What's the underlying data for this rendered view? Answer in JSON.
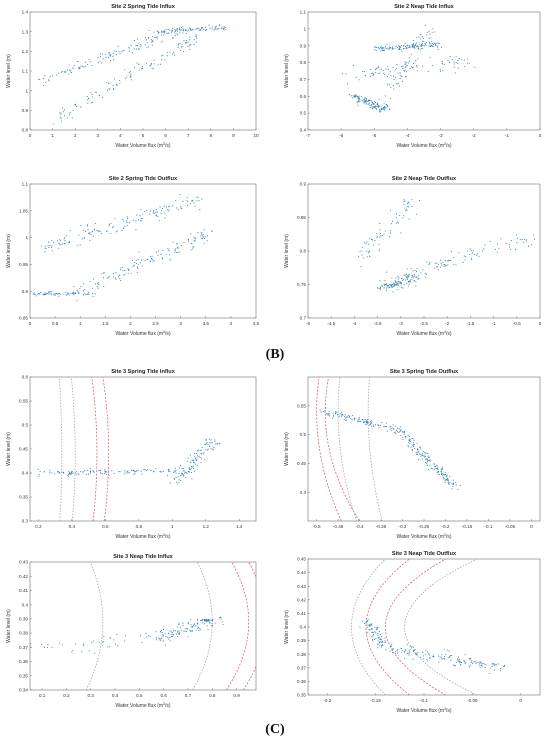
{
  "captions": {
    "b": "(B)",
    "c": "(C)"
  },
  "colors": {
    "points": "#2f7fb1",
    "bounds_red": "#d9534f",
    "bounds_grey": "#9a9a9a"
  },
  "chart_data": [
    {
      "id": "s2-spring-in",
      "type": "scatter",
      "title": "Site 2 Spring Tide Influx",
      "xlabel": "Water Volume flux (m<sup>3</sup>/s)",
      "ylabel": "Water level (m)",
      "xlim": [
        0,
        10
      ],
      "ylim": [
        0.8,
        1.4
      ],
      "xticks": [
        0,
        1,
        2,
        3,
        4,
        5,
        6,
        7,
        8,
        9,
        10
      ],
      "yticks": [
        0.8,
        0.9,
        1.0,
        1.1,
        1.2,
        1.3,
        1.4
      ],
      "xtick_labels": [
        "0",
        "1",
        "2",
        "3",
        "4",
        "5",
        "6",
        "7",
        "8",
        "9",
        "10"
      ],
      "ytick_labels": [
        "0.8",
        "0.9",
        "1",
        "1.1",
        "1.2",
        "1.3",
        "1.4"
      ],
      "clusters": [
        {
          "x0": 0.3,
          "y0": 1.05,
          "x1": 6.8,
          "y1": 1.31,
          "n": 130,
          "sx": 0.35,
          "sy": 0.03
        },
        {
          "x0": 1.2,
          "y0": 0.86,
          "x1": 7.6,
          "y1": 1.28,
          "n": 120,
          "sx": 0.3,
          "sy": 0.025
        },
        {
          "x0": 5.5,
          "y0": 1.3,
          "x1": 8.6,
          "y1": 1.32,
          "n": 90,
          "sx": 0.3,
          "sy": 0.012
        }
      ]
    },
    {
      "id": "s2-neap-in",
      "type": "scatter",
      "title": "Site 2 Neap Tide Influx",
      "xlabel": "Water Volume flux (m<sup>3</sup>/s)",
      "ylabel": "Water level (m)",
      "xlim": [
        -7,
        0
      ],
      "ylim": [
        0.4,
        1.1
      ],
      "xticks": [
        -7,
        -6,
        -5,
        -4,
        -3,
        -2,
        -1,
        0
      ],
      "yticks": [
        0.4,
        0.5,
        0.6,
        0.7,
        0.8,
        0.9,
        1.0,
        1.1
      ],
      "xtick_labels": [
        "-7",
        "-6",
        "-5",
        "-4",
        "-3",
        "-2",
        "-1",
        "0"
      ],
      "ytick_labels": [
        "0.4",
        "0.5",
        "0.6",
        "0.7",
        "0.8",
        "0.9",
        "1",
        "1.1"
      ],
      "clusters": [
        {
          "x0": -5.6,
          "y0": 0.6,
          "x1": -4.7,
          "y1": 0.52,
          "n": 130,
          "sx": 0.18,
          "sy": 0.02
        },
        {
          "x0": -5.0,
          "y0": 0.88,
          "x1": -3.1,
          "y1": 0.91,
          "n": 130,
          "sx": 0.2,
          "sy": 0.02
        },
        {
          "x0": -5.8,
          "y0": 0.72,
          "x1": -2.2,
          "y1": 0.8,
          "n": 90,
          "sx": 0.3,
          "sy": 0.05
        },
        {
          "x0": -4.8,
          "y0": 0.55,
          "x1": -3.3,
          "y1": 1.0,
          "n": 60,
          "sx": 0.25,
          "sy": 0.04
        }
      ]
    },
    {
      "id": "s2-spring-out",
      "type": "scatter",
      "title": "Site 2 Spring Tide Outflux",
      "xlabel": "Water Volume flux (m<sup>3</sup>/s)",
      "ylabel": "Water level (m)",
      "xlim": [
        0,
        4.5
      ],
      "ylim": [
        0.85,
        1.1
      ],
      "xticks": [
        0,
        0.5,
        1,
        1.5,
        2,
        2.5,
        3,
        3.5,
        4,
        4.5
      ],
      "yticks": [
        0.85,
        0.9,
        0.95,
        1.0,
        1.05,
        1.1
      ],
      "xtick_labels": [
        "0",
        "0.5",
        "1",
        "1.5",
        "2",
        "2.5",
        "3",
        "3.5",
        "4",
        "4.5"
      ],
      "ytick_labels": [
        "0.85",
        "0.9",
        "0.95",
        "1",
        "1.05",
        "1.1"
      ],
      "clusters": [
        {
          "x0": 0.1,
          "y0": 0.895,
          "x1": 1.3,
          "y1": 0.895,
          "n": 70,
          "sx": 0.25,
          "sy": 0.004
        },
        {
          "x0": 1.0,
          "y0": 0.9,
          "x1": 3.6,
          "y1": 1.01,
          "n": 140,
          "sx": 0.25,
          "sy": 0.01
        },
        {
          "x0": 0.3,
          "y0": 0.98,
          "x1": 3.3,
          "y1": 1.07,
          "n": 150,
          "sx": 0.3,
          "sy": 0.012
        }
      ]
    },
    {
      "id": "s2-neap-out",
      "type": "scatter",
      "title": "Site 2 Neap Tide Outflux",
      "xlabel": "Water Volume flux (m<sup>3</sup>/s)",
      "ylabel": "Water level (m)",
      "xlim": [
        -5,
        0
      ],
      "ylim": [
        0.7,
        0.9
      ],
      "xticks": [
        -5,
        -4.5,
        -4,
        -3.5,
        -3,
        -2.5,
        -2,
        -1.5,
        -1,
        -0.5,
        0
      ],
      "yticks": [
        0.7,
        0.75,
        0.8,
        0.85,
        0.9
      ],
      "xtick_labels": [
        "-5",
        "-4.5",
        "-4",
        "-3.5",
        "-3",
        "-2.5",
        "-2",
        "-1.5",
        "-1",
        "-0.5",
        "0"
      ],
      "ytick_labels": [
        "0.7",
        "0.75",
        "0.8",
        "0.85",
        "0.9"
      ],
      "clusters": [
        {
          "x0": -3.4,
          "y0": 0.745,
          "x1": -2.7,
          "y1": 0.76,
          "n": 110,
          "sx": 0.2,
          "sy": 0.008
        },
        {
          "x0": -3.0,
          "y0": 0.76,
          "x1": -0.2,
          "y1": 0.82,
          "n": 100,
          "sx": 0.25,
          "sy": 0.01
        },
        {
          "x0": -3.9,
          "y0": 0.79,
          "x1": -2.7,
          "y1": 0.88,
          "n": 70,
          "sx": 0.2,
          "sy": 0.015
        }
      ]
    },
    {
      "id": "s3-spring-in",
      "type": "scatter",
      "title": "Site 3 Spring Tide Influx",
      "xlabel": "Water Volume flux (m<sup>3</sup>/s)",
      "ylabel": "Water level (m)",
      "xlim": [
        0.15,
        1.5
      ],
      "ylim": [
        0.3,
        0.6
      ],
      "xticks": [
        0.2,
        0.4,
        0.6,
        0.8,
        1.0,
        1.2,
        1.4
      ],
      "yticks": [
        0.3,
        0.35,
        0.4,
        0.45,
        0.5,
        0.55,
        0.6
      ],
      "xtick_labels": [
        "0.2",
        "0.4",
        "0.6",
        "0.8",
        "1",
        "1.2",
        "1.4"
      ],
      "ytick_labels": [
        "0.3",
        "0.35",
        "0.4",
        "0.45",
        "0.5",
        "0.55",
        "0.6"
      ],
      "clusters": [
        {
          "x0": 0.2,
          "y0": 0.4,
          "x1": 1.05,
          "y1": 0.405,
          "n": 120,
          "sx": 0.12,
          "sy": 0.006
        },
        {
          "x0": 1.02,
          "y0": 0.38,
          "x1": 1.25,
          "y1": 0.47,
          "n": 110,
          "sx": 0.05,
          "sy": 0.012
        }
      ],
      "curves": [
        {
          "style": "red",
          "k": [
            -1.2,
            0.44,
            0.55
          ]
        },
        {
          "style": "red",
          "k": [
            -1.35,
            0.44,
            0.62
          ]
        },
        {
          "style": "grey",
          "k": [
            -0.9,
            0.44,
            0.42
          ]
        },
        {
          "style": "grey",
          "k": [
            -0.6,
            0.44,
            0.34
          ]
        }
      ]
    },
    {
      "id": "s3-spring-out",
      "type": "scatter",
      "title": "Site 3 Spring Tide Outflux",
      "xlabel": "Water Volume flux (m<sup>3</sup>/s)",
      "ylabel": "Water level (m)",
      "xlim": [
        -0.52,
        0.02
      ],
      "ylim": [
        0.35,
        0.6
      ],
      "xticks": [
        -0.5,
        -0.45,
        -0.4,
        -0.35,
        -0.3,
        -0.25,
        -0.2,
        -0.15,
        -0.1,
        -0.05,
        0
      ],
      "yticks": [
        0.4,
        0.45,
        0.5,
        0.55
      ],
      "xtick_labels": [
        "-0.5",
        "-0.45",
        "-0.4",
        "-0.35",
        "-0.3",
        "-0.25",
        "-0.2",
        "-0.15",
        "-0.1",
        "-0.05",
        "0"
      ],
      "ytick_labels": [
        "0.4",
        "0.45",
        "0.5",
        "0.55"
      ],
      "clusters": [
        {
          "x0": -0.48,
          "y0": 0.54,
          "x1": -0.3,
          "y1": 0.505,
          "n": 120,
          "sx": 0.02,
          "sy": 0.005
        },
        {
          "x0": -0.3,
          "y0": 0.5,
          "x1": -0.18,
          "y1": 0.41,
          "n": 160,
          "sx": 0.012,
          "sy": 0.008
        }
      ],
      "curves": [
        {
          "style": "red",
          "k": [
            1.6,
            0.54,
            -0.5
          ]
        },
        {
          "style": "red",
          "k": [
            2.2,
            0.54,
            -0.48
          ]
        },
        {
          "style": "grey",
          "k": [
            1.2,
            0.54,
            -0.45
          ]
        },
        {
          "style": "grey",
          "k": [
            0.9,
            0.54,
            -0.38
          ]
        }
      ]
    },
    {
      "id": "s3-neap-in",
      "type": "scatter",
      "title": "Site 3 Neap Tide Influx",
      "xlabel": "Water Volume flux (m<sup>3</sup>/s)",
      "ylabel": "Water level (m)",
      "xlim": [
        0.05,
        0.98
      ],
      "ylim": [
        0.34,
        0.43
      ],
      "xticks": [
        0.1,
        0.2,
        0.3,
        0.4,
        0.5,
        0.6,
        0.7,
        0.8,
        0.9
      ],
      "yticks": [
        0.34,
        0.35,
        0.36,
        0.37,
        0.38,
        0.39,
        0.4,
        0.41,
        0.42,
        0.43
      ],
      "xtick_labels": [
        "0.1",
        "0.2",
        "0.3",
        "0.4",
        "0.5",
        "0.6",
        "0.7",
        "0.8",
        "0.9"
      ],
      "ytick_labels": [
        "0.34",
        "0.35",
        "0.36",
        "0.37",
        "0.38",
        "0.39",
        "0.4",
        "0.41",
        "0.42",
        "0.43"
      ],
      "clusters": [
        {
          "x0": 0.55,
          "y0": 0.375,
          "x1": 0.82,
          "y1": 0.39,
          "n": 110,
          "sx": 0.05,
          "sy": 0.004
        },
        {
          "x0": 0.08,
          "y0": 0.37,
          "x1": 0.6,
          "y1": 0.375,
          "n": 40,
          "sx": 0.1,
          "sy": 0.006
        },
        {
          "x0": 0.76,
          "y0": 0.389,
          "x1": 0.79,
          "y1": 0.389,
          "n": 30,
          "sx": 0.012,
          "sy": 0.0008
        }
      ],
      "curves": [
        {
          "style": "red",
          "k": [
            -40,
            0.388,
            0.95
          ]
        },
        {
          "style": "red",
          "k": [
            -40,
            0.388,
            1.02
          ]
        },
        {
          "style": "grey",
          "k": [
            -35,
            0.388,
            0.8
          ]
        },
        {
          "style": "grey",
          "k": [
            -30,
            0.388,
            0.35
          ]
        }
      ]
    },
    {
      "id": "s3-neap-out",
      "type": "scatter",
      "title": "Site 3 Neap Tide Outflux",
      "xlabel": "Water Volume flux (m<sup>3</sup>/s)",
      "ylabel": "Water level (m)",
      "xlim": [
        -0.22,
        0.02
      ],
      "ylim": [
        0.35,
        0.45
      ],
      "xticks": [
        -0.2,
        -0.15,
        -0.1,
        -0.05,
        0
      ],
      "yticks": [
        0.35,
        0.36,
        0.37,
        0.38,
        0.39,
        0.4,
        0.41,
        0.42,
        0.43,
        0.44,
        0.45
      ],
      "xtick_labels": [
        "-0.2",
        "-0.15",
        "-0.1",
        "-0.05",
        "0"
      ],
      "ytick_labels": [
        "0.35",
        "0.36",
        "0.37",
        "0.38",
        "0.39",
        "0.4",
        "0.41",
        "0.42",
        "0.43",
        "0.44",
        "0.45"
      ],
      "clusters": [
        {
          "x0": -0.16,
          "y0": 0.405,
          "x1": -0.14,
          "y1": 0.385,
          "n": 80,
          "sx": 0.006,
          "sy": 0.004
        },
        {
          "x0": -0.14,
          "y0": 0.385,
          "x1": -0.02,
          "y1": 0.37,
          "n": 150,
          "sx": 0.012,
          "sy": 0.004
        }
      ],
      "curves": [
        {
          "style": "red",
          "k": [
            18,
            0.4,
            -0.16
          ]
        },
        {
          "style": "red",
          "k": [
            25,
            0.4,
            -0.14
          ]
        },
        {
          "style": "grey",
          "k": [
            14,
            0.4,
            -0.175
          ]
        },
        {
          "style": "grey",
          "k": [
            30,
            0.4,
            -0.12
          ]
        }
      ]
    }
  ]
}
